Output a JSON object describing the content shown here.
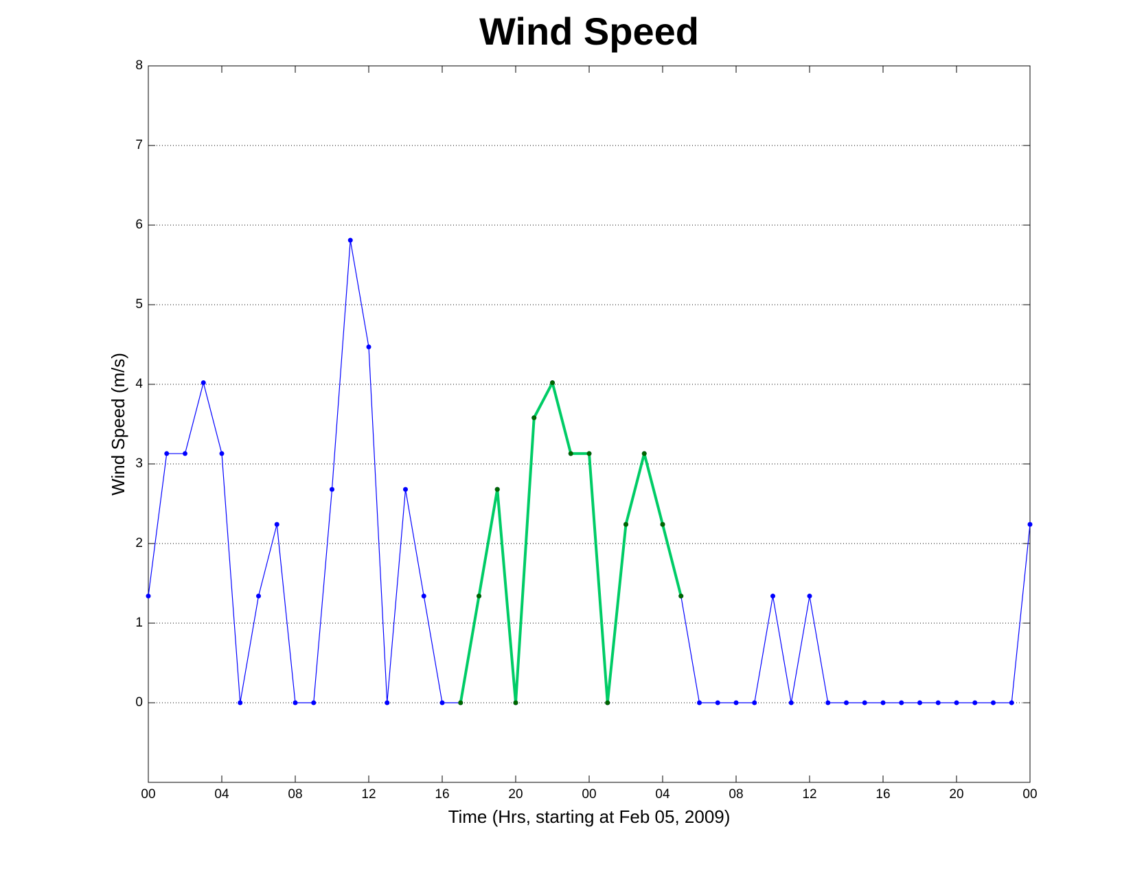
{
  "chart_data": {
    "type": "line",
    "title": "Wind Speed",
    "x_label": "Time (Hrs, starting at Feb 05, 2009)",
    "y_label": "Wind Speed (m/s)",
    "x": [
      0,
      1,
      2,
      3,
      4,
      5,
      6,
      7,
      8,
      9,
      10,
      11,
      12,
      13,
      14,
      15,
      16,
      17,
      18,
      19,
      20,
      21,
      22,
      23,
      24,
      25,
      26,
      27,
      28,
      29,
      30,
      31,
      32,
      33,
      34,
      35,
      36,
      37,
      38,
      39,
      40,
      41,
      42,
      43,
      44,
      45,
      46,
      47,
      48
    ],
    "series": [
      {
        "color": "#0000ff",
        "marker_color": "#0000ff",
        "line_width": 1.2,
        "values": [
          1.34,
          3.13,
          3.13,
          4.02,
          3.13,
          0,
          1.34,
          2.24,
          0,
          0,
          2.68,
          5.81,
          4.47,
          0,
          2.68,
          1.34,
          0,
          0,
          1.34,
          2.68,
          0,
          3.58,
          4.02,
          3.13,
          3.13,
          0,
          2.24,
          3.13,
          2.24,
          1.34,
          0,
          0,
          0,
          0,
          1.34,
          0,
          1.34,
          0,
          0,
          0,
          0,
          0,
          0,
          0,
          0,
          0,
          0,
          0,
          2.24
        ]
      },
      {
        "color": "#00cc66",
        "marker_color": "#006600",
        "line_width": 4,
        "values": [
          null,
          null,
          null,
          null,
          null,
          null,
          null,
          null,
          null,
          null,
          null,
          null,
          null,
          null,
          null,
          null,
          null,
          0,
          1.34,
          2.68,
          0,
          3.58,
          4.02,
          3.13,
          3.13,
          0,
          2.24,
          3.13,
          2.24,
          1.34,
          null,
          null,
          null,
          null,
          null,
          null,
          null,
          null,
          null,
          null,
          null,
          null,
          null,
          null,
          null,
          null,
          null,
          null,
          null
        ]
      }
    ],
    "xlim": [
      0,
      48
    ],
    "xticks": [
      {
        "value": 0,
        "label": "00"
      },
      {
        "value": 4,
        "label": "04"
      },
      {
        "value": 8,
        "label": "08"
      },
      {
        "value": 12,
        "label": "12"
      },
      {
        "value": 16,
        "label": "16"
      },
      {
        "value": 20,
        "label": "20"
      },
      {
        "value": 24,
        "label": "00"
      },
      {
        "value": 28,
        "label": "04"
      },
      {
        "value": 32,
        "label": "08"
      },
      {
        "value": 36,
        "label": "12"
      },
      {
        "value": 40,
        "label": "16"
      },
      {
        "value": 44,
        "label": "20"
      },
      {
        "value": 48,
        "label": "00"
      }
    ],
    "ylim": [
      -1,
      8
    ],
    "yticks": [
      0,
      1,
      2,
      3,
      4,
      5,
      6,
      7,
      8
    ],
    "grid": true
  }
}
